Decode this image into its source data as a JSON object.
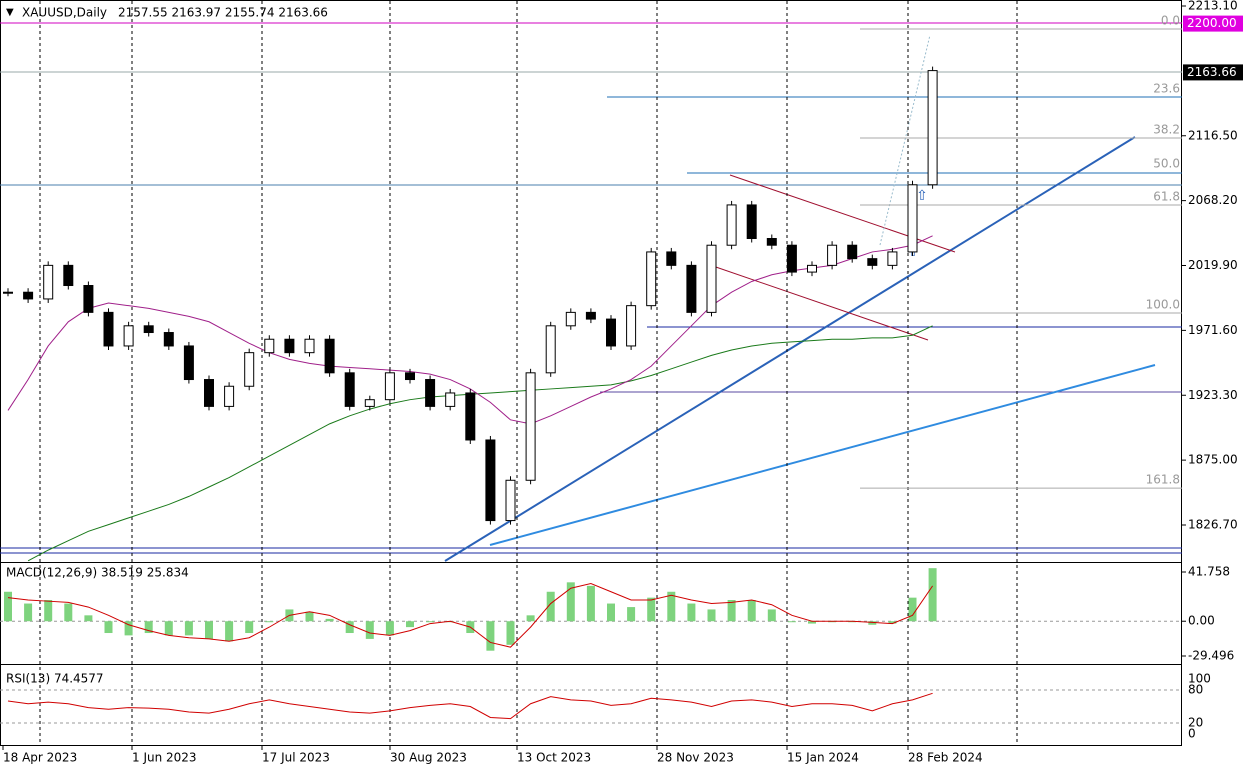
{
  "header": {
    "symbol": "XAUUSD,Daily",
    "ohlc": "2157.55 2163.97 2155.74 2163.66"
  },
  "price_axis": {
    "ticks": [
      {
        "value": 2213.1,
        "label": "2213.10"
      },
      {
        "value": 2116.5,
        "label": "2116.50"
      },
      {
        "value": 2068.2,
        "label": "2068.20"
      },
      {
        "value": 2019.9,
        "label": "2019.90"
      },
      {
        "value": 1971.6,
        "label": "1971.60"
      },
      {
        "value": 1923.3,
        "label": "1923.30"
      },
      {
        "value": 1875,
        "label": "1875.00"
      },
      {
        "value": 1826.7,
        "label": "1826.70"
      }
    ],
    "level": {
      "value": 2200,
      "label": "2200.00"
    },
    "current": {
      "value": 2163.66,
      "label": "2163.66"
    }
  },
  "fib_levels": [
    {
      "value": 2196,
      "label": "0.0"
    },
    {
      "value": 2145.4,
      "label": "23.6"
    },
    {
      "value": 2114.8,
      "label": "38.2"
    },
    {
      "value": 2089.5,
      "label": "50.0"
    },
    {
      "value": 2064.9,
      "label": "61.8"
    },
    {
      "value": 1984.5,
      "label": "100.0"
    },
    {
      "value": 1854.2,
      "label": "161.8"
    }
  ],
  "candles": {
    "closes": [
      2000,
      1995,
      2020,
      2005,
      1985,
      1960,
      1975,
      1970,
      1960,
      1935,
      1915,
      1930,
      1955,
      1965,
      1955,
      1965,
      1940,
      1915,
      1920,
      1940,
      1935,
      1915,
      1925,
      1890,
      1830,
      1860,
      1940,
      1975,
      1985,
      1980,
      1960,
      1990,
      2030,
      2020,
      1985,
      2035,
      2065,
      2040,
      2035,
      2015,
      2020,
      2035,
      2025,
      2020,
      2030,
      2080,
      2165
    ],
    "ma_fast": [
      1912,
      1935,
      1960,
      1978,
      1988,
      1992,
      1990,
      1988,
      1985,
      1982,
      1978,
      1970,
      1962,
      1955,
      1950,
      1947,
      1945,
      1944,
      1943,
      1942,
      1941,
      1939,
      1935,
      1928,
      1918,
      1905,
      1902,
      1908,
      1915,
      1922,
      1928,
      1935,
      1945,
      1960,
      1975,
      1990,
      2000,
      2008,
      2013,
      2016,
      2018,
      2020,
      2025,
      2030,
      2032,
      2035,
      2042
    ],
    "ma_slow": [
      null,
      1800,
      1808,
      1815,
      1822,
      1827,
      1832,
      1837,
      1842,
      1848,
      1855,
      1862,
      1870,
      1878,
      1886,
      1894,
      1902,
      1908,
      1913,
      1917,
      1920,
      1922,
      1923,
      1924,
      1925,
      1926,
      1927,
      1928,
      1929,
      1930,
      1931,
      1934,
      1938,
      1943,
      1948,
      1953,
      1957,
      1960,
      1962,
      1963,
      1964,
      1965,
      1965,
      1966,
      1966,
      1968,
      1975
    ]
  },
  "macd": {
    "label": "MACD(12,26,9) 38.519 25.834",
    "ticks": [
      {
        "value": 41.758,
        "label": "41.758"
      },
      {
        "value": 0,
        "label": "0.00"
      },
      {
        "value": -29.496,
        "label": "-29.496"
      }
    ],
    "histogram": [
      25,
      15,
      18,
      15,
      5,
      -10,
      -12,
      -10,
      -12,
      -12,
      -15,
      -17,
      -10,
      0,
      10,
      8,
      2,
      -10,
      -15,
      -12,
      -5,
      0,
      0,
      -10,
      -25,
      -20,
      5,
      25,
      33,
      30,
      15,
      12,
      20,
      25,
      15,
      10,
      18,
      18,
      10,
      0,
      -2,
      0,
      0,
      -3,
      -2,
      20,
      45
    ],
    "signal": [
      20,
      18,
      17,
      16,
      12,
      5,
      -3,
      -8,
      -12,
      -14,
      -15,
      -17,
      -14,
      -5,
      5,
      8,
      5,
      -3,
      -10,
      -12,
      -8,
      -2,
      0,
      -5,
      -18,
      -22,
      -5,
      15,
      28,
      32,
      25,
      18,
      18,
      22,
      18,
      15,
      16,
      18,
      14,
      5,
      0,
      0,
      0,
      -1,
      -2,
      5,
      30
    ]
  },
  "rsi": {
    "label": "RSI(13) 74.4577",
    "ticks": [
      100,
      80,
      20,
      0
    ],
    "values": [
      60,
      55,
      58,
      55,
      48,
      45,
      48,
      47,
      45,
      40,
      38,
      45,
      55,
      62,
      55,
      50,
      45,
      40,
      38,
      42,
      48,
      52,
      55,
      50,
      30,
      28,
      55,
      68,
      62,
      60,
      52,
      55,
      65,
      62,
      58,
      50,
      60,
      62,
      58,
      50,
      55,
      55,
      52,
      42,
      55,
      62,
      74
    ]
  },
  "dates": [
    "18 Apr 2023",
    "1 Jun 2023",
    "17 Jul 2023",
    "30 Aug 2023",
    "13 Oct 2023",
    "28 Nov 2023",
    "15 Jan 2024",
    "28 Feb 2024"
  ]
}
